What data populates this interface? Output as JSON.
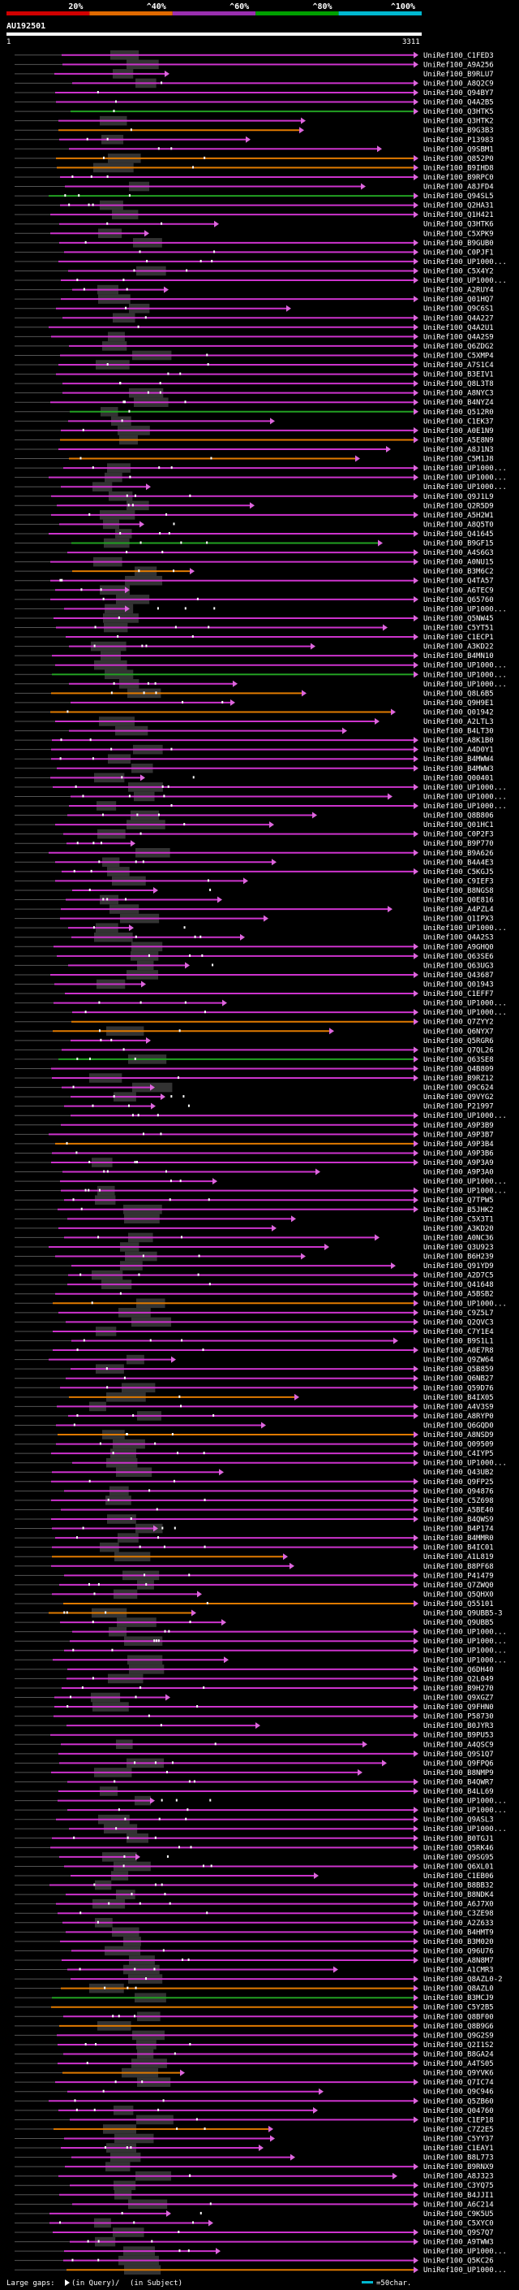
{
  "chart_data": {
    "type": "alignment-overview",
    "query_id": "AU192501",
    "query_start_label": "1",
    "query_end_label": "3311",
    "query_length": 3311,
    "identity_scale": [
      {
        "label": "20%",
        "color": "#d10000"
      },
      {
        "label": "^40%",
        "color": "#e06a00"
      },
      {
        "label": "^60%",
        "color": "#9a2fb0"
      },
      {
        "label": "^80%",
        "color": "#00a000"
      },
      {
        "label": "^100%",
        "color": "#00b8d0"
      }
    ],
    "colors": {
      "high": "#cc33cc",
      "mid": "#e07a00",
      "low": "#22a022",
      "gap_block": "#333333",
      "arrow": "#dd66dd"
    },
    "subjects": [
      "UniRef100_C1FED3",
      "UniRef100_A9A256",
      "UniRef100_B9RLU7",
      "UniRef100_A8Q2C9",
      "UniRef100_Q94BY7",
      "UniRef100_Q4A2B5",
      "UniRef100_Q3HTK5",
      "UniRef100_Q3HTK2",
      "UniRef100_B9G3B3",
      "UniRef100_P13983",
      "UniRef100_Q9SBM1",
      "UniRef100_Q852P0",
      "UniRef100_B9IHD8",
      "UniRef100_B9RPC0",
      "UniRef100_A8JFD4",
      "UniRef100_Q94SL5",
      "UniRef100_Q2HA31",
      "UniRef100_Q1H421",
      "UniRef100_Q3HTK6",
      "UniRef100_C5XPK9",
      "UniRef100_B9GUB0",
      "UniRef100_C0PJF1",
      "UniRef100_UP1000...",
      "UniRef100_C5X4Y2",
      "UniRef100_UP1000...",
      "UniRef100_A2RUY4",
      "UniRef100_Q01HQ7",
      "UniRef100_Q9C6S1",
      "UniRef100_Q4A227",
      "UniRef100_Q4A2U1",
      "UniRef100_Q4A2S9",
      "UniRef100_Q6ZDG2",
      "UniRef100_C5XMP4",
      "UniRef100_A7S1C4",
      "UniRef100_B3EIV1",
      "UniRef100_Q8L3T8",
      "UniRef100_A8NYC3",
      "UniRef100_B4NYZ4",
      "UniRef100_Q512R0",
      "UniRef100_C1EK37",
      "UniRef100_A0E1N9",
      "UniRef100_A5E8N9",
      "UniRef100_A8J1N3",
      "UniRef100_C5M1J8",
      "UniRef100_UP1000...",
      "UniRef100_UP1000...",
      "UniRef100_UP1000...",
      "UniRef100_Q9J1L9",
      "UniRef100_Q2R5D9",
      "UniRef100_A5H2W1",
      "UniRef100_A8Q5T0",
      "UniRef100_Q41645",
      "UniRef100_B9GF15",
      "UniRef100_A4S6G3",
      "UniRef100_A0NU15",
      "UniRef100_B3M6C2",
      "UniRef100_Q4TA57",
      "UniRef100_A6TEC9",
      "UniRef100_Q65760",
      "UniRef100_UP1000...",
      "UniRef100_Q5NW45",
      "UniRef100_C5YT51",
      "UniRef100_C1ECP1",
      "UniRef100_A3KD22",
      "UniRef100_B4MN10",
      "UniRef100_UP1000...",
      "UniRef100_UP1000...",
      "UniRef100_UP1000...",
      "UniRef100_Q8L6B5",
      "UniRef100_Q9H9E1",
      "UniRef100_Q01942",
      "UniRef100_A2LTL3",
      "UniRef100_B4LT30",
      "UniRef100_A8K1B0",
      "UniRef100_A4D0Y1",
      "UniRef100_B4MWW4",
      "UniRef100_B4MWW3",
      "UniRef100_Q00401",
      "UniRef100_UP1000...",
      "UniRef100_UP1000...",
      "UniRef100_UP1000...",
      "UniRef100_Q8B806",
      "UniRef100_Q01HC1",
      "UniRef100_C0P2F3",
      "UniRef100_B9P770",
      "UniRef100_B9A626",
      "UniRef100_B4A4E3",
      "UniRef100_C5KGJ5",
      "UniRef100_C9IEF3",
      "UniRef100_B8NGS8",
      "UniRef100_Q0E816",
      "UniRef100_A4PZL4",
      "UniRef100_Q1IPX3",
      "UniRef100_UP1000...",
      "UniRef100_Q4A2S3",
      "UniRef100_A9GHQ0",
      "UniRef100_Q63SE6",
      "UniRef100_Q63UG3",
      "UniRef100_Q43687",
      "UniRef100_Q01943",
      "UniRef100_C1EFF7",
      "UniRef100_UP1000...",
      "UniRef100_UP1000...",
      "UniRef100_Q7ZYY2",
      "UniRef100_Q6NYX7",
      "UniRef100_Q5RGR6",
      "UniRef100_Q7QL26",
      "UniRef100_Q63SE8",
      "UniRef100_Q4B809",
      "UniRef100_B9RZ12",
      "UniRef100_Q9C624",
      "UniRef100_Q9VYG2",
      "UniRef100_P21997",
      "UniRef100_UP1000...",
      "UniRef100_A9P3B9",
      "UniRef100_A9P3B7",
      "UniRef100_A9P3B4",
      "UniRef100_A9P3B6",
      "UniRef100_A9P3A9",
      "UniRef100_A9P3A0",
      "UniRef100_UP1000...",
      "UniRef100_UP1000...",
      "UniRef100_Q7TPW5",
      "UniRef100_B5JHK2",
      "UniRef100_C5X3T1",
      "UniRef100_A3KD20",
      "UniRef100_A0NC36",
      "UniRef100_Q3U923",
      "UniRef100_B6H239",
      "UniRef100_Q91YD9",
      "UniRef100_A2D7C5",
      "UniRef100_Q41648",
      "UniRef100_A5BSB2",
      "UniRef100_UP1000...",
      "UniRef100_C9Z5L7",
      "UniRef100_Q2QVC3",
      "UniRef100_C7Y1E4",
      "UniRef100_B9S1L1",
      "UniRef100_A0E7R8",
      "UniRef100_Q9ZW64",
      "UniRef100_Q5B859",
      "UniRef100_Q6NB27",
      "UniRef100_Q59D76",
      "UniRef100_B4IX05",
      "UniRef100_A4V3S9",
      "UniRef100_A8RYP0",
      "UniRef100_Q6GQD0",
      "UniRef100_A8NSD9",
      "UniRef100_Q09509",
      "UniRef100_C4IYP5",
      "UniRef100_UP1000...",
      "UniRef100_Q43UB2",
      "UniRef100_Q9FP25",
      "UniRef100_Q94876",
      "UniRef100_C5Z698",
      "UniRef100_A5BE40",
      "UniRef100_B4QWS9",
      "UniRef100_B4P174",
      "UniRef100_B4MMR0",
      "UniRef100_B4IC01",
      "UniRef100_A1L819",
      "UniRef100_B8PF68",
      "UniRef100_P41479",
      "UniRef100_Q7ZWQ0",
      "UniRef100_Q5QHX0",
      "UniRef100_Q55101",
      "UniRef100_Q9UBB5-3",
      "UniRef100_Q9UBB5",
      "UniRef100_UP1000...",
      "UniRef100_UP1000...",
      "UniRef100_UP1000...",
      "UniRef100_UP1000...",
      "UniRef100_Q6DH40",
      "UniRef100_Q2L049",
      "UniRef100_B9H270",
      "UniRef100_Q9XGZ7",
      "UniRef100_Q9FHN0",
      "UniRef100_P58730",
      "UniRef100_B0JYR3",
      "UniRef100_B9PU53",
      "UniRef100_A4QSC9",
      "UniRef100_Q9S1Q7",
      "UniRef100_Q9FPQ6",
      "UniRef100_B8NMP9",
      "UniRef100_B4QWR7",
      "UniRef100_B4LL69",
      "UniRef100_UP1000...",
      "UniRef100_UP1000...",
      "UniRef100_Q9ASL3",
      "UniRef100_UP1000...",
      "UniRef100_B0TGJ1",
      "UniRef100_Q5RK46",
      "UniRef100_Q9SG95",
      "UniRef100_Q6XL01",
      "UniRef100_C1EB06",
      "UniRef100_B8BB32",
      "UniRef100_B8NDK4",
      "UniRef100_A6J7X0",
      "UniRef100_C3ZE98",
      "UniRef100_A2Z633",
      "UniRef100_B4HMT9",
      "UniRef100_B3M020",
      "UniRef100_Q96U76",
      "UniRef100_A8N8M7",
      "UniRef100_A1CMR3",
      "UniRef100_Q8AZL0-2",
      "UniRef100_Q8AZL0",
      "UniRef100_B3MCJ9",
      "UniRef100_C5Y2B5",
      "UniRef100_Q8BF00",
      "UniRef100_Q8B9G6",
      "UniRef100_Q9G2S9",
      "UniRef100_Q2I1S2",
      "UniRef100_B8GA24",
      "UniRef100_A4TS05",
      "UniRef100_Q9YVK6",
      "UniRef100_Q7IC74",
      "UniRef100_Q9C946",
      "UniRef100_Q5ZB60",
      "UniRef100_Q04760",
      "UniRef100_C1EP18",
      "UniRef100_C7Z2E5",
      "UniRef100_C5YY37",
      "UniRef100_C1EAY1",
      "UniRef100_B8L773",
      "UniRef100_B9RNX9",
      "UniRef100_A8J323",
      "UniRef100_C3YQ75",
      "UniRef100_B4JJI1",
      "UniRef100_A6C214",
      "UniRef100_C9K5U5",
      "UniRef100_C5XYC0",
      "UniRef100_Q9S7Q7",
      "UniRef100_A9TWW3",
      "UniRef100_UP1000...",
      "UniRef100_Q5KC26",
      "UniRef100_UP1000..."
    ],
    "footer": {
      "gap_legend_prefix": "Large gaps:",
      "gap_query": "(in Query)",
      "gap_sep": " / ",
      "gap_subject": "(in Subject)",
      "scale_text": "=50char."
    }
  }
}
